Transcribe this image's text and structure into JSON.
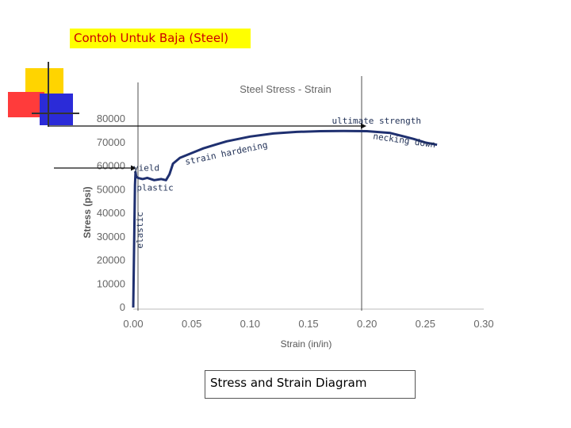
{
  "slide": {
    "title": "Contoh Untuk Baja (Steel)",
    "caption": "Stress and Strain Diagram"
  },
  "colors": {
    "title_bg": "#ffff00",
    "title_text": "#cc0000",
    "deco_yellow": "#ffd400",
    "deco_red": "#ff3b3b",
    "deco_blue": "#2b2bd8",
    "curve": "#1f3070"
  },
  "chart_data": {
    "type": "line",
    "title": "Steel Stress - Strain",
    "xlabel": "Strain (in/in)",
    "ylabel": "Stress (psi)",
    "xlim": [
      0,
      0.3
    ],
    "ylim": [
      0,
      80000
    ],
    "x_ticks": [
      "0.00",
      "0.05",
      "0.10",
      "0.15",
      "0.20",
      "0.25",
      "0.30"
    ],
    "y_ticks": [
      "0",
      "10000",
      "20000",
      "30000",
      "40000",
      "50000",
      "60000",
      "70000",
      "80000"
    ],
    "grid": false,
    "series": [
      {
        "x": [
          0,
          0.0015,
          0.002,
          0.0025,
          0.004,
          0.008,
          0.012,
          0.018,
          0.024,
          0.028,
          0.031,
          0.034,
          0.04,
          0.05,
          0.06,
          0.07,
          0.08,
          0.09,
          0.1,
          0.12,
          0.14,
          0.16,
          0.18,
          0.2,
          0.22,
          0.24,
          0.25,
          0.26
        ],
        "y": [
          0,
          52000,
          57500,
          55500,
          55000,
          54500,
          55000,
          54000,
          54500,
          54000,
          56500,
          61000,
          63500,
          65500,
          67500,
          69000,
          70500,
          71500,
          72500,
          73800,
          74500,
          74800,
          74900,
          74800,
          74000,
          71500,
          70000,
          69000
        ]
      }
    ],
    "annotations": [
      {
        "text": "ultimate strength",
        "x": 0.17,
        "y": 78000
      },
      {
        "text": "necking down",
        "x": 0.205,
        "y": 71500
      },
      {
        "text": "strain hardening",
        "x": 0.045,
        "y": 60500
      },
      {
        "text": "yield",
        "x": 0.0,
        "y": 58000
      },
      {
        "text": "plastic",
        "x": 0.003,
        "y": 49500
      },
      {
        "text": "elastic",
        "x": 0.008,
        "y": 25000
      }
    ]
  }
}
